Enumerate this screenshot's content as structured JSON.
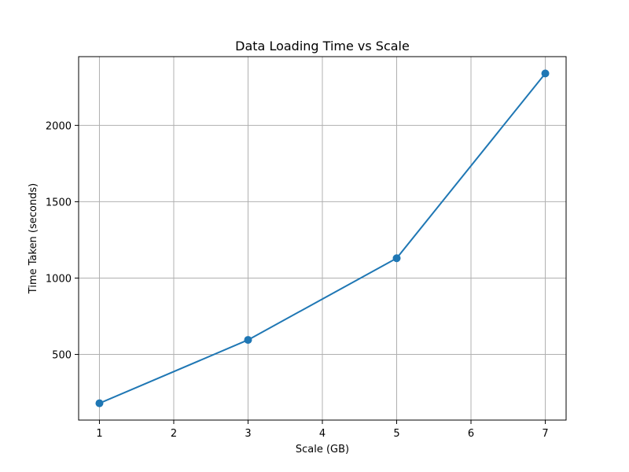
{
  "chart_data": {
    "type": "line",
    "title": "Data Loading Time vs Scale",
    "xlabel": "Scale (GB)",
    "ylabel": "Time Taken (seconds)",
    "x_ticks": [
      1,
      2,
      3,
      4,
      5,
      6,
      7
    ],
    "y_ticks": [
      500,
      1000,
      1500,
      2000
    ],
    "xlim": [
      0.72,
      7.28
    ],
    "ylim": [
      70,
      2450
    ],
    "grid": true,
    "series": [
      {
        "color": "#1f77b4",
        "marker": "circle",
        "x": [
          1,
          3,
          5,
          7
        ],
        "y": [
          180,
          595,
          1130,
          2340
        ]
      }
    ]
  }
}
